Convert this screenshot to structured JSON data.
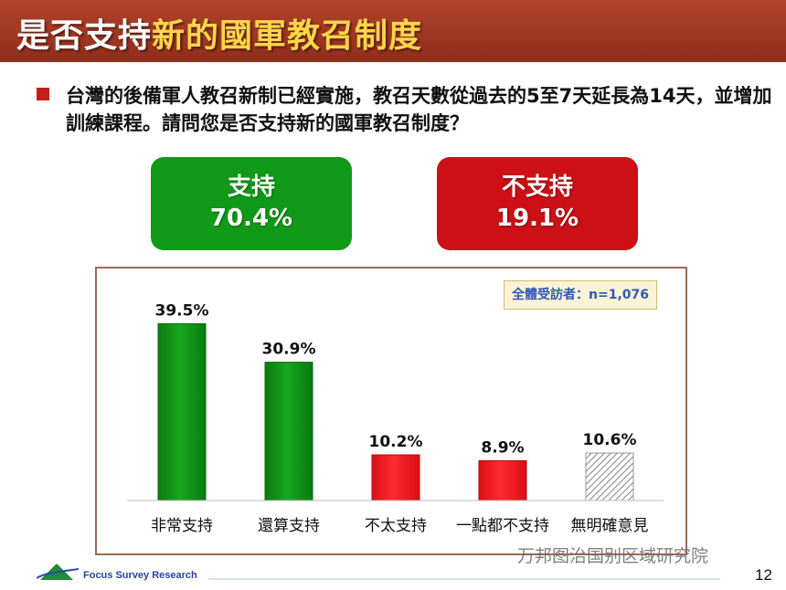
{
  "title": {
    "prefix": "是否支持",
    "highlight": "新的國軍教召制度"
  },
  "question": "台灣的後備軍人教召新制已經實施，教召天數從過去的5至7天延長為14天，並增加訓練課程。請問您是否支持新的國軍教召制度？",
  "summary": {
    "support": {
      "label": "支持",
      "value": "70.4%",
      "color": "#119a18"
    },
    "oppose": {
      "label": "不支持",
      "value": "19.1%",
      "color": "#cc1016"
    }
  },
  "sample_note": "全體受訪者：n=1,076",
  "chart_data": {
    "type": "bar",
    "categories": [
      "非常支持",
      "還算支持",
      "不太支持",
      "一點都不支持",
      "無明確意見"
    ],
    "values": [
      39.5,
      30.9,
      10.2,
      8.9,
      10.6
    ],
    "value_labels": [
      "39.5%",
      "30.9%",
      "10.2%",
      "8.9%",
      "10.6%"
    ],
    "bar_styles": [
      "green",
      "green",
      "red",
      "red",
      "hatched-gray"
    ],
    "colors": {
      "green": "#119a18",
      "red": "#e8141b",
      "gray": "#9a9a9a"
    },
    "ylim": [
      0,
      40
    ],
    "grid": false,
    "legend": "none"
  },
  "footer": {
    "brand": "Focus Survey Research",
    "watermark": "万邦图治国别区域研究院",
    "page_number": "12"
  }
}
